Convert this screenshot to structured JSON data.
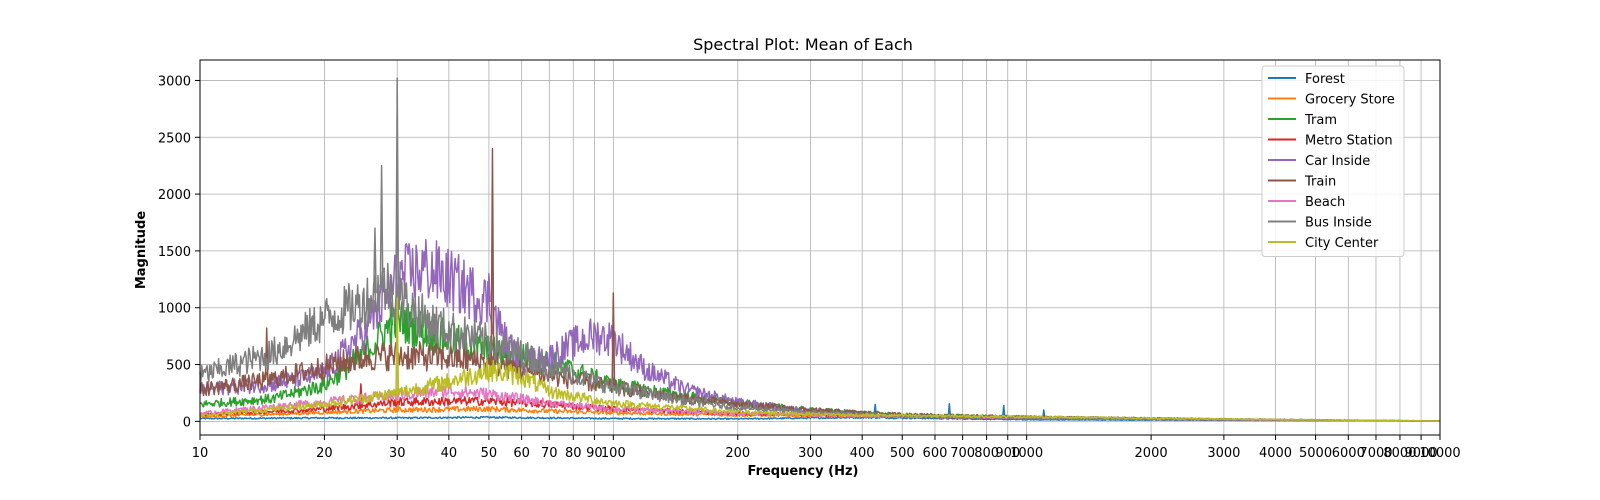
{
  "chart_data": {
    "type": "line",
    "title": "Spectral Plot: Mean of Each",
    "xlabel": "Frequency (Hz)",
    "ylabel": "Magnitude",
    "xscale": "log",
    "xlim": [
      10,
      10000
    ],
    "ylim": [
      -120,
      3180
    ],
    "grid": true,
    "legend_position": "top-right",
    "x_ticks": [
      10,
      20,
      30,
      40,
      50,
      60,
      70,
      80,
      90,
      100,
      200,
      300,
      400,
      500,
      600,
      700,
      800,
      900,
      1000,
      2000,
      3000,
      4000,
      5000,
      6000,
      7000,
      8000,
      9000,
      10000
    ],
    "y_ticks": [
      0,
      500,
      1000,
      1500,
      2000,
      2500,
      3000
    ],
    "series": [
      {
        "name": "Forest",
        "color": "#1f77b4",
        "x": [
          10,
          20,
          30,
          50,
          70,
          100,
          200,
          400,
          1000,
          3000,
          10000
        ],
        "y": [
          25,
          30,
          30,
          35,
          30,
          25,
          22,
          35,
          15,
          10,
          3
        ],
        "spikes": [
          {
            "x": 430,
            "y": 150
          },
          {
            "x": 650,
            "y": 155
          },
          {
            "x": 880,
            "y": 140
          },
          {
            "x": 1100,
            "y": 100
          }
        ]
      },
      {
        "name": "Grocery Store",
        "color": "#ff7f0e",
        "x": [
          10,
          20,
          30,
          50,
          70,
          100,
          200,
          400,
          1000,
          3000,
          10000
        ],
        "y": [
          40,
          80,
          100,
          110,
          90,
          75,
          55,
          45,
          30,
          15,
          3
        ],
        "spikes": [
          {
            "x": 30,
            "y": 280
          }
        ]
      },
      {
        "name": "Tram",
        "color": "#2ca02c",
        "x": [
          10,
          15,
          20,
          25,
          30,
          40,
          50,
          70,
          100,
          150,
          200,
          300,
          500,
          1000,
          3000,
          10000
        ],
        "y": [
          150,
          200,
          320,
          600,
          900,
          720,
          620,
          520,
          320,
          220,
          160,
          100,
          60,
          40,
          20,
          3
        ],
        "spikes": [
          {
            "x": 29,
            "y": 1050
          }
        ]
      },
      {
        "name": "Metro Station",
        "color": "#d62728",
        "x": [
          10,
          20,
          30,
          50,
          70,
          100,
          200,
          400,
          1000,
          3000,
          10000
        ],
        "y": [
          60,
          110,
          170,
          180,
          150,
          110,
          70,
          50,
          30,
          15,
          3
        ],
        "spikes": [
          {
            "x": 24.5,
            "y": 330
          }
        ]
      },
      {
        "name": "Car Inside",
        "color": "#9467bd",
        "x": [
          10,
          15,
          20,
          25,
          30,
          35,
          40,
          50,
          55,
          60,
          70,
          80,
          90,
          100,
          120,
          150,
          200,
          300,
          500,
          1000,
          3000,
          10000
        ],
        "y": [
          280,
          330,
          420,
          800,
          1250,
          1350,
          1250,
          1050,
          700,
          520,
          560,
          680,
          760,
          720,
          450,
          280,
          170,
          90,
          50,
          30,
          15,
          3
        ],
        "spikes": [
          {
            "x": 30,
            "y": 1950
          },
          {
            "x": 50,
            "y": 1300
          }
        ]
      },
      {
        "name": "Train",
        "color": "#8c564b",
        "x": [
          10,
          15,
          20,
          25,
          30,
          40,
          50,
          70,
          100,
          150,
          200,
          300,
          500,
          1000,
          3000,
          10000
        ],
        "y": [
          280,
          370,
          480,
          560,
          580,
          560,
          520,
          400,
          300,
          200,
          150,
          100,
          60,
          40,
          20,
          3
        ],
        "spikes": [
          {
            "x": 14.5,
            "y": 820
          },
          {
            "x": 51,
            "y": 2400
          },
          {
            "x": 100,
            "y": 1130
          }
        ]
      },
      {
        "name": "Beach",
        "color": "#e377c2",
        "x": [
          10,
          20,
          30,
          40,
          50,
          70,
          100,
          200,
          400,
          1000,
          3000,
          10000
        ],
        "y": [
          70,
          170,
          230,
          270,
          240,
          160,
          110,
          70,
          50,
          30,
          15,
          3
        ],
        "spikes": []
      },
      {
        "name": "Bus Inside",
        "color": "#7f7f7f",
        "x": [
          10,
          15,
          20,
          25,
          28,
          30,
          35,
          40,
          50,
          60,
          70,
          100,
          150,
          200,
          300,
          500,
          1000,
          3000,
          10000
        ],
        "y": [
          400,
          600,
          900,
          1050,
          1200,
          1100,
          900,
          800,
          700,
          600,
          480,
          300,
          180,
          120,
          80,
          50,
          30,
          15,
          3
        ],
        "spikes": [
          {
            "x": 27.5,
            "y": 2250
          },
          {
            "x": 30,
            "y": 3020
          },
          {
            "x": 26.5,
            "y": 1700
          }
        ]
      },
      {
        "name": "City Center",
        "color": "#bcbd22",
        "x": [
          10,
          20,
          30,
          40,
          50,
          60,
          70,
          100,
          200,
          400,
          1000,
          3000,
          10000
        ],
        "y": [
          50,
          150,
          250,
          350,
          450,
          400,
          260,
          160,
          80,
          55,
          40,
          20,
          3
        ],
        "spikes": [
          {
            "x": 30,
            "y": 1080
          }
        ]
      }
    ]
  }
}
